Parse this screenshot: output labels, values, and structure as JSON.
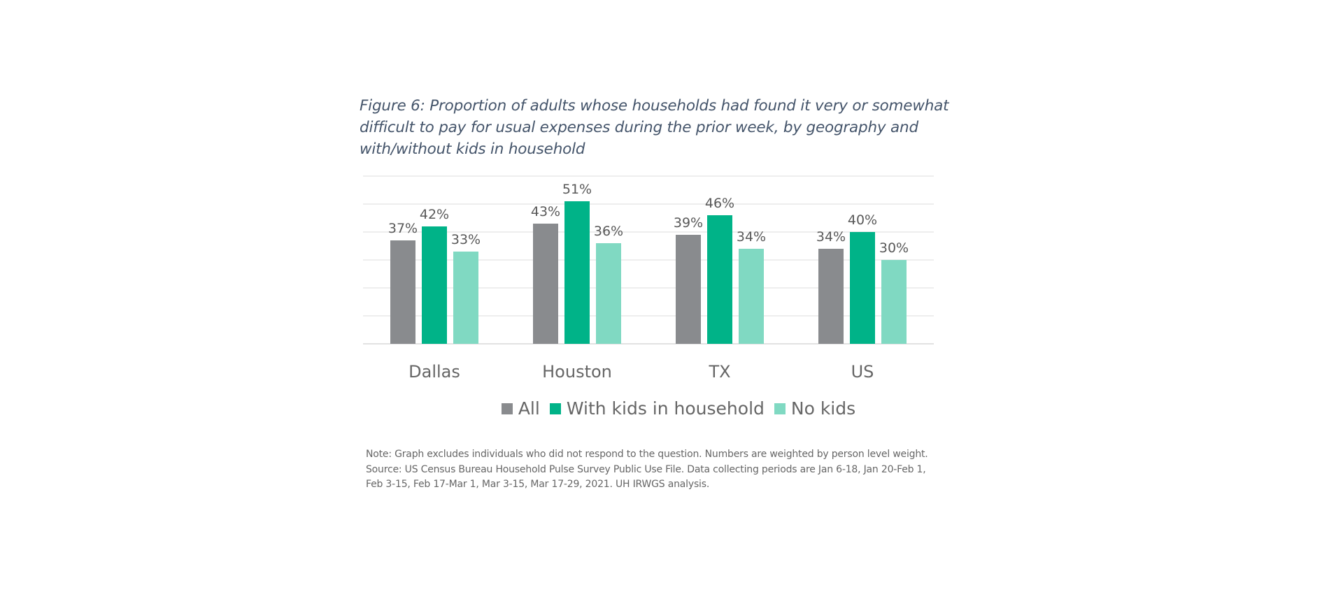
{
  "title": "Figure 6: Proportion of adults whose households had found it very or somewhat difficult to pay for usual expenses during the prior week, by geography and with/without kids in household",
  "note_lines": [
    "Note: Graph excludes individuals who did not respond to the question. Numbers are weighted by person level weight.",
    "Source: US Census Bureau Household Pulse Survey Public Use File. Data collecting periods are Jan 6-18, Jan 20-Feb 1,",
    "Feb 3-15, Feb 17-Mar 1, Mar 3-15, Mar 17-29, 2021. UH IRWGS analysis."
  ],
  "colors": {
    "all": "#898b8e",
    "with_kids": "#00b388",
    "no_kids": "#80d9c2"
  },
  "chart_data": {
    "type": "bar",
    "categories": [
      "Dallas",
      "Houston",
      "TX",
      "US"
    ],
    "series": [
      {
        "name": "All",
        "values": [
          37,
          43,
          39,
          34
        ],
        "labels": [
          "37%",
          "43%",
          "39%",
          "34%"
        ],
        "color": "#898b8e"
      },
      {
        "name": "With kids in household",
        "values": [
          42,
          51,
          46,
          40
        ],
        "labels": [
          "42%",
          "51%",
          "46%",
          "40%"
        ],
        "color": "#00b388"
      },
      {
        "name": "No kids",
        "values": [
          33,
          36,
          34,
          30
        ],
        "labels": [
          "33%",
          "36%",
          "34%",
          "30%"
        ],
        "color": "#80d9c2"
      }
    ],
    "ylim": [
      0,
      60
    ],
    "y_gridline_step": 10,
    "y_axis_labels_shown": false,
    "grid": true,
    "legend_position": "bottom"
  }
}
